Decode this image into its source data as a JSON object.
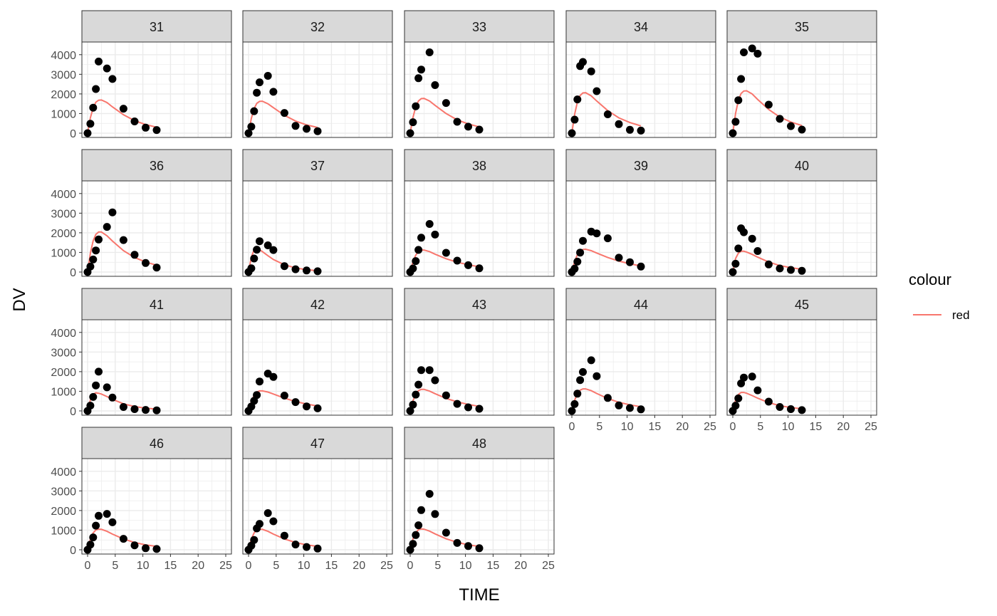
{
  "chart_data": {
    "type": "scatter",
    "facet_by": "ID",
    "layout": "facet_wrap",
    "ncol": 5,
    "xlabel": "TIME",
    "ylabel": "DV",
    "xlim": [
      0,
      25
    ],
    "ylim": [
      0,
      4500
    ],
    "xticks": [
      0,
      5,
      10,
      15,
      20,
      25
    ],
    "yticks": [
      0,
      1000,
      2000,
      3000,
      4000
    ],
    "grid": true,
    "legend": {
      "title": "colour",
      "position": "right",
      "entries": [
        {
          "label": "red",
          "color": "#F8766D"
        }
      ]
    },
    "colors": {
      "points": "#000000",
      "line": "#F8766D",
      "strip_bg": "#d9d9d9",
      "grid": "#ebebeb"
    },
    "times": [
      0,
      0.5,
      1,
      1.5,
      2,
      2.5,
      3.5,
      4.5,
      6.5,
      8.5,
      10.5,
      12.5
    ],
    "panels": [
      {
        "id": "31",
        "obs": [
          0,
          480,
          1300,
          2250,
          3650,
          null,
          3300,
          2760,
          1250,
          600,
          280,
          160
        ],
        "pred": [
          0,
          780,
          1300,
          1580,
          1680,
          1690,
          1560,
          1340,
          940,
          640,
          440,
          300
        ]
      },
      {
        "id": "32",
        "obs": [
          0,
          330,
          1120,
          2060,
          2590,
          null,
          2920,
          2110,
          1030,
          370,
          220,
          100
        ],
        "pred": [
          0,
          750,
          1250,
          1520,
          1620,
          1630,
          1500,
          1300,
          910,
          620,
          420,
          290
        ]
      },
      {
        "id": "33",
        "obs": [
          0,
          560,
          1370,
          2800,
          3240,
          null,
          4120,
          2450,
          1540,
          580,
          330,
          180
        ],
        "pred": [
          0,
          800,
          1350,
          1640,
          1760,
          1770,
          1640,
          1420,
          1000,
          680,
          470,
          320
        ]
      },
      {
        "id": "34",
        "obs": [
          0,
          690,
          1720,
          3420,
          3630,
          null,
          3150,
          2140,
          960,
          460,
          170,
          130
        ],
        "pred": [
          0,
          960,
          1590,
          1920,
          2050,
          2060,
          1900,
          1640,
          1150,
          780,
          540,
          370
        ]
      },
      {
        "id": "35",
        "obs": [
          0,
          580,
          1680,
          2760,
          4120,
          null,
          4320,
          4050,
          1450,
          730,
          360,
          180
        ],
        "pred": [
          0,
          1010,
          1670,
          2020,
          2150,
          2160,
          2000,
          1720,
          1210,
          820,
          570,
          390
        ]
      },
      {
        "id": "36",
        "obs": [
          0,
          280,
          640,
          1100,
          1660,
          null,
          2300,
          3040,
          1630,
          880,
          460,
          230
        ],
        "pred": [
          0,
          960,
          1590,
          1920,
          2040,
          2040,
          1850,
          1580,
          1090,
          740,
          510,
          350
        ]
      },
      {
        "id": "37",
        "obs": [
          0,
          190,
          690,
          1140,
          1570,
          null,
          1360,
          1120,
          300,
          140,
          80,
          40
        ],
        "pred": [
          0,
          760,
          1140,
          1210,
          1140,
          1040,
          830,
          640,
          370,
          210,
          120,
          70
        ]
      },
      {
        "id": "38",
        "obs": [
          0,
          180,
          560,
          1130,
          1750,
          null,
          2450,
          1910,
          980,
          580,
          350,
          190
        ],
        "pred": [
          0,
          520,
          860,
          1050,
          1120,
          1120,
          1040,
          910,
          680,
          500,
          370,
          270
        ]
      },
      {
        "id": "39",
        "obs": [
          0,
          170,
          530,
          990,
          1590,
          null,
          2060,
          1970,
          1720,
          730,
          500,
          280
        ],
        "pred": [
          0,
          540,
          890,
          1080,
          1150,
          1160,
          1090,
          970,
          740,
          560,
          420,
          310
        ]
      },
      {
        "id": "40",
        "obs": [
          0,
          420,
          1200,
          2230,
          2030,
          null,
          1700,
          1070,
          390,
          180,
          110,
          60
        ],
        "pred": [
          0,
          690,
          960,
          1060,
          1060,
          1020,
          900,
          760,
          510,
          330,
          220,
          140
        ]
      },
      {
        "id": "41",
        "obs": [
          0,
          270,
          710,
          1300,
          2000,
          null,
          1200,
          680,
          200,
          90,
          50,
          30
        ],
        "pred": [
          0,
          560,
          850,
          920,
          900,
          860,
          730,
          590,
          360,
          220,
          140,
          90
        ]
      },
      {
        "id": "42",
        "obs": [
          0,
          220,
          510,
          810,
          1500,
          null,
          1900,
          1730,
          780,
          450,
          230,
          130
        ],
        "pred": [
          0,
          480,
          790,
          960,
          1020,
          1020,
          960,
          860,
          650,
          480,
          350,
          250
        ]
      },
      {
        "id": "43",
        "obs": [
          0,
          320,
          830,
          1340,
          2080,
          null,
          2080,
          1560,
          790,
          360,
          180,
          110
        ],
        "pred": [
          0,
          520,
          850,
          1030,
          1100,
          1100,
          1010,
          880,
          640,
          460,
          330,
          230
        ]
      },
      {
        "id": "44",
        "obs": [
          0,
          350,
          880,
          1570,
          1980,
          null,
          2580,
          1770,
          660,
          280,
          150,
          80
        ],
        "pred": [
          0,
          540,
          880,
          1060,
          1120,
          1120,
          1030,
          890,
          630,
          440,
          310,
          210
        ]
      },
      {
        "id": "45",
        "obs": [
          0,
          270,
          640,
          1400,
          1700,
          null,
          1750,
          1050,
          470,
          200,
          90,
          40
        ],
        "pred": [
          0,
          560,
          840,
          940,
          940,
          900,
          780,
          650,
          420,
          270,
          170,
          110
        ]
      },
      {
        "id": "46",
        "obs": [
          0,
          260,
          630,
          1230,
          1730,
          null,
          1830,
          1400,
          560,
          230,
          80,
          40
        ],
        "pred": [
          0,
          540,
          860,
          1010,
          1050,
          1040,
          940,
          800,
          550,
          370,
          250,
          170
        ]
      },
      {
        "id": "47",
        "obs": [
          0,
          210,
          500,
          1090,
          1320,
          null,
          1870,
          1450,
          720,
          270,
          140,
          60
        ],
        "pred": [
          0,
          540,
          860,
          1010,
          1050,
          1040,
          940,
          800,
          550,
          370,
          250,
          170
        ]
      },
      {
        "id": "48",
        "obs": [
          0,
          300,
          750,
          1250,
          2020,
          null,
          2850,
          1820,
          870,
          350,
          190,
          80
        ],
        "pred": [
          0,
          560,
          880,
          1020,
          1060,
          1050,
          950,
          810,
          560,
          380,
          250,
          170
        ]
      }
    ]
  }
}
